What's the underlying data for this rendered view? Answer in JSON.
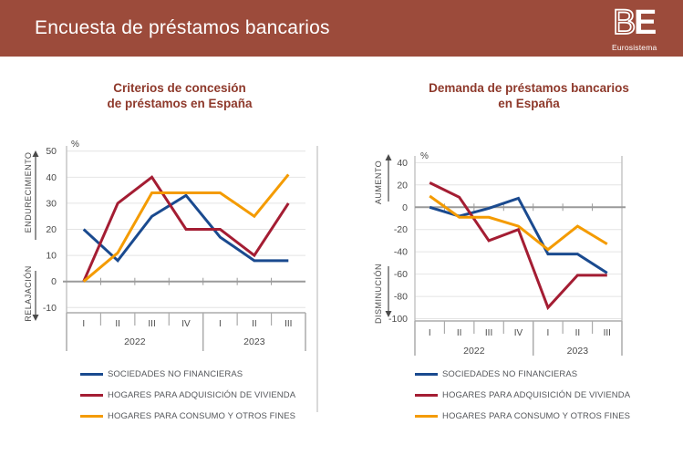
{
  "header": {
    "title": "Encuesta de préstamos bancarios",
    "logo": {
      "b": "B",
      "e": "E",
      "subtitle": "Eurosistema"
    },
    "bg_color": "#9C4B3B"
  },
  "palette": {
    "title_color": "#8E392B",
    "blue": "#1A4A8F",
    "red": "#A41D33",
    "orange": "#F49B00",
    "grid": "#E4E4E4",
    "zero_line": "#9A9A9A",
    "axis_text": "#4A4A4A"
  },
  "chart_data": [
    {
      "id": "criterios",
      "type": "line",
      "title_lines": [
        "Criterios de concesión",
        "de préstamos en España"
      ],
      "unit": "%",
      "axis_labels": {
        "up": "ENDURECIMIENTO",
        "down": "RELAJACIÓN"
      },
      "y_ticks": [
        50,
        40,
        30,
        20,
        10,
        0,
        -10
      ],
      "ylim": [
        -12,
        52
      ],
      "grid": true,
      "legend_position": "bottom",
      "x": {
        "quarters": [
          "I",
          "II",
          "III",
          "IV",
          "I",
          "II",
          "III"
        ],
        "year_groups": [
          {
            "label": "2022",
            "span": 4
          },
          {
            "label": "2023",
            "span": 3
          }
        ]
      },
      "series": [
        {
          "name": "SOCIEDADES NO FINANCIERAS",
          "color": "#1A4A8F",
          "values": [
            20,
            8,
            25,
            33,
            17,
            8,
            8
          ]
        },
        {
          "name": "HOGARES PARA ADQUISICIÓN DE VIVIENDA",
          "color": "#A41D33",
          "values": [
            0,
            30,
            40,
            20,
            20,
            10,
            30
          ]
        },
        {
          "name": "HOGARES PARA CONSUMO Y OTROS FINES",
          "color": "#F49B00",
          "values": [
            0,
            11,
            34,
            34,
            34,
            25,
            41
          ]
        }
      ]
    },
    {
      "id": "demanda",
      "type": "line",
      "title_lines": [
        "Demanda de préstamos bancarios",
        "en España"
      ],
      "unit": "%",
      "axis_labels": {
        "up": "AUMENTO",
        "down": "DISMINUCIÓN"
      },
      "y_ticks": [
        40,
        20,
        0,
        -20,
        -40,
        -60,
        -80,
        -100
      ],
      "ylim": [
        -102,
        46
      ],
      "grid": true,
      "legend_position": "bottom",
      "x": {
        "quarters": [
          "I",
          "II",
          "III",
          "IV",
          "I",
          "II",
          "III"
        ],
        "year_groups": [
          {
            "label": "2022",
            "span": 4
          },
          {
            "label": "2023",
            "span": 3
          }
        ]
      },
      "series": [
        {
          "name": "SOCIEDADES NO FINANCIERAS",
          "color": "#1A4A8F",
          "values": [
            0,
            -8,
            -1,
            8,
            -42,
            -42,
            -59
          ]
        },
        {
          "name": "HOGARES PARA ADQUISICIÓN DE VIVIENDA",
          "color": "#A41D33",
          "values": [
            22,
            9,
            -30,
            -20,
            -90,
            -61,
            -61
          ]
        },
        {
          "name": "HOGARES PARA CONSUMO Y OTROS FINES",
          "color": "#F49B00",
          "values": [
            10,
            -9,
            -9,
            -17,
            -38,
            -17,
            -33
          ]
        }
      ]
    }
  ]
}
